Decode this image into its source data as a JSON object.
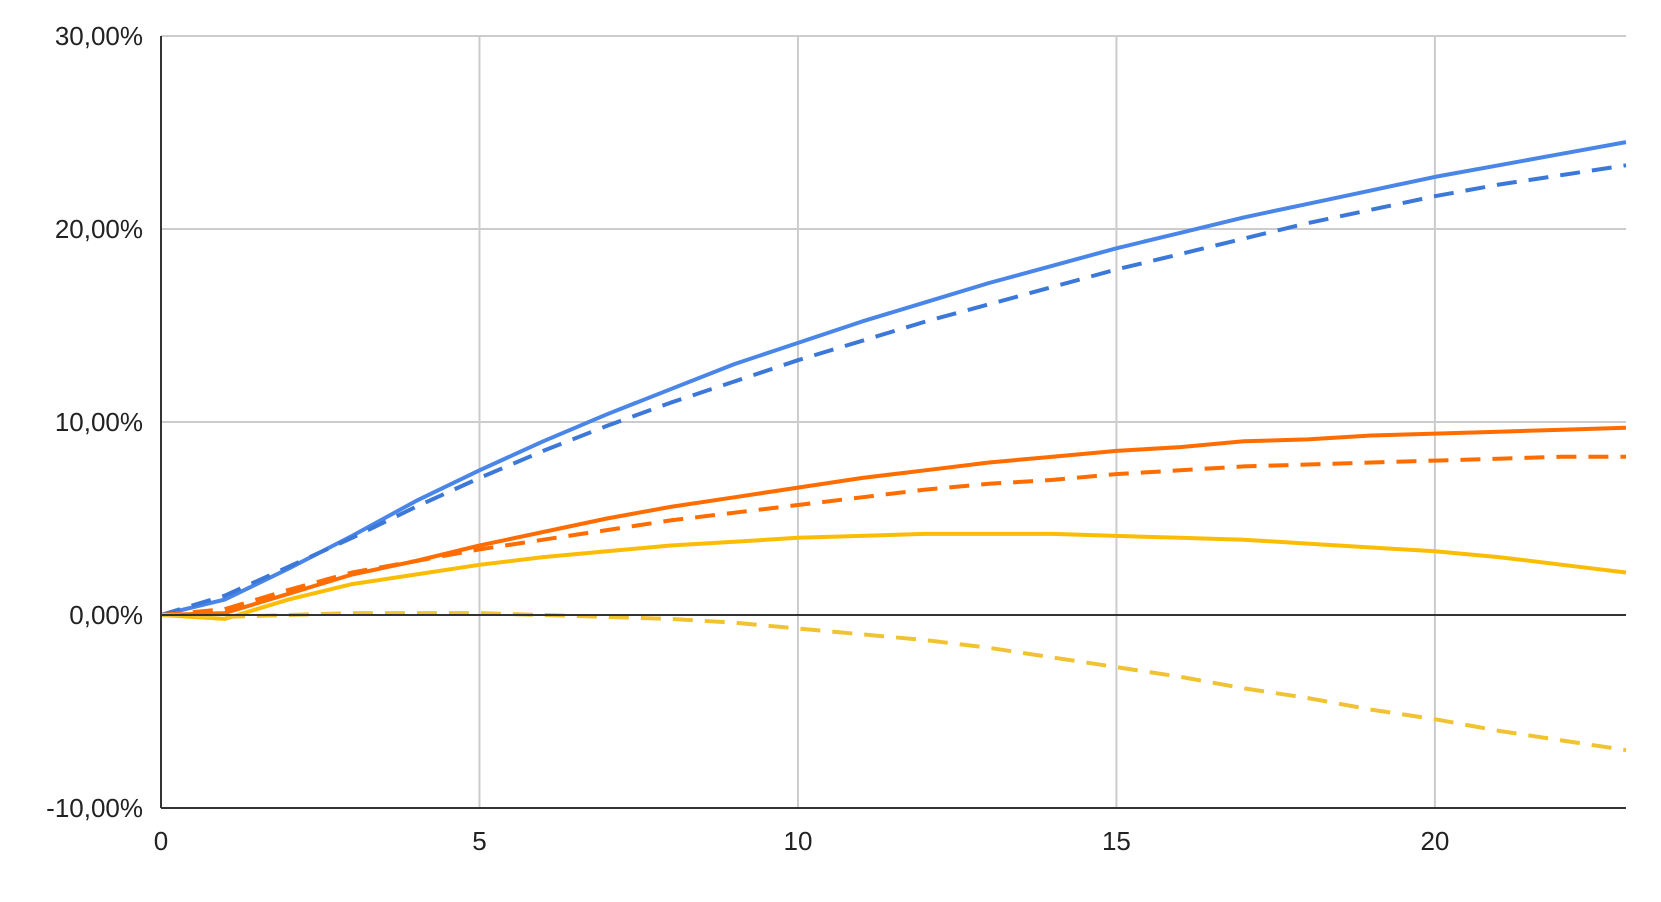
{
  "chart_data": {
    "type": "line",
    "title": "",
    "xlabel": "",
    "ylabel": "",
    "xlim": [
      0,
      23
    ],
    "ylim": [
      -10,
      30
    ],
    "grid": true,
    "legend": "none",
    "x_ticks": [
      0,
      5,
      10,
      15,
      20
    ],
    "x_tick_labels": [
      "0",
      "5",
      "10",
      "15",
      "20"
    ],
    "y_ticks": [
      -10,
      0,
      10,
      20,
      30
    ],
    "y_tick_labels": [
      "-10,00%",
      "0,00%",
      "10,00%",
      "20,00%",
      "30,00%"
    ],
    "x": [
      0,
      1,
      2,
      3,
      4,
      5,
      6,
      7,
      8,
      9,
      10,
      11,
      12,
      13,
      14,
      15,
      16,
      17,
      18,
      19,
      20,
      21,
      22,
      23
    ],
    "series": [
      {
        "color": "#4a86e8",
        "dash": "solid",
        "values": [
          0,
          0.8,
          2.4,
          4.1,
          5.9,
          7.5,
          9.0,
          10.4,
          11.7,
          13.0,
          14.1,
          15.2,
          16.2,
          17.2,
          18.1,
          19.0,
          19.8,
          20.6,
          21.3,
          22.0,
          22.7,
          23.3,
          23.9,
          24.5
        ]
      },
      {
        "color": "#3c78d8",
        "dash": "dashed",
        "values": [
          0,
          1.0,
          2.5,
          4.0,
          5.6,
          7.1,
          8.5,
          9.8,
          11.0,
          12.1,
          13.2,
          14.2,
          15.2,
          16.1,
          17.0,
          17.9,
          18.7,
          19.5,
          20.3,
          21.0,
          21.7,
          22.3,
          22.8,
          23.3
        ]
      },
      {
        "color": "#ff6d01",
        "dash": "solid",
        "values": [
          0,
          0.1,
          1.1,
          2.1,
          2.8,
          3.6,
          4.3,
          5.0,
          5.6,
          6.1,
          6.6,
          7.1,
          7.5,
          7.9,
          8.2,
          8.5,
          8.7,
          9.0,
          9.1,
          9.3,
          9.4,
          9.5,
          9.6,
          9.7
        ]
      },
      {
        "color": "#ff6d01",
        "dash": "dashed",
        "values": [
          0,
          0.3,
          1.3,
          2.2,
          2.8,
          3.4,
          3.9,
          4.4,
          4.9,
          5.3,
          5.7,
          6.1,
          6.5,
          6.8,
          7.0,
          7.3,
          7.5,
          7.7,
          7.8,
          7.9,
          8.0,
          8.1,
          8.2,
          8.2
        ]
      },
      {
        "color": "#fbbc04",
        "dash": "solid",
        "values": [
          0,
          -0.2,
          0.8,
          1.6,
          2.1,
          2.6,
          3.0,
          3.3,
          3.6,
          3.8,
          4.0,
          4.1,
          4.2,
          4.2,
          4.2,
          4.1,
          4.0,
          3.9,
          3.7,
          3.5,
          3.3,
          3.0,
          2.6,
          2.2
        ]
      },
      {
        "color": "#f1c232",
        "dash": "dashed",
        "values": [
          0,
          -0.1,
          0.0,
          0.1,
          0.1,
          0.1,
          0.0,
          -0.1,
          -0.2,
          -0.4,
          -0.7,
          -1.0,
          -1.3,
          -1.7,
          -2.2,
          -2.7,
          -3.2,
          -3.8,
          -4.3,
          -4.9,
          -5.4,
          -6.0,
          -6.5,
          -7.0
        ]
      }
    ]
  }
}
